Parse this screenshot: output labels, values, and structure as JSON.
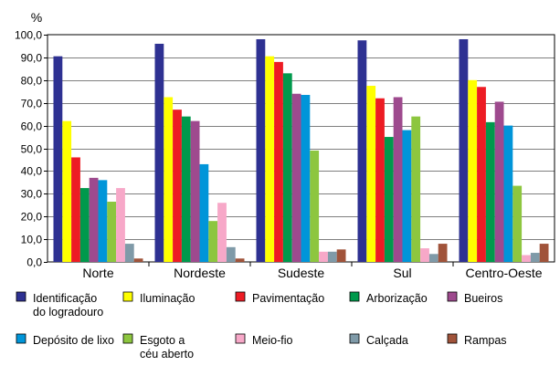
{
  "chart_data": {
    "type": "bar",
    "ylabel": "%",
    "ylim": [
      0,
      100
    ],
    "ytick_step": 10,
    "ytick_labels": [
      "0,0",
      "10,0",
      "20,0",
      "30,0",
      "40,0",
      "50,0",
      "60,0",
      "70,0",
      "80,0",
      "90,0",
      "100,0"
    ],
    "grid": true,
    "categories": [
      "Norte",
      "Nordeste",
      "Sudeste",
      "Sul",
      "Centro-Oeste"
    ],
    "series": [
      {
        "name": "Identificação do logradouro",
        "legend_lines": [
          "Identificação",
          "do logradouro"
        ],
        "color": "#2e3192",
        "values": [
          90.5,
          96.0,
          98.0,
          97.5,
          98.0
        ]
      },
      {
        "name": "Iluminação",
        "legend_lines": [
          "Iluminação"
        ],
        "color": "#ffff00",
        "values": [
          62.0,
          72.5,
          90.5,
          77.5,
          80.0
        ]
      },
      {
        "name": "Pavimentação",
        "legend_lines": [
          "Pavimentação"
        ],
        "color": "#ed1c24",
        "values": [
          46.0,
          67.0,
          88.0,
          72.0,
          77.0
        ]
      },
      {
        "name": "Arborização",
        "legend_lines": [
          "Arborização"
        ],
        "color": "#00994c",
        "values": [
          32.5,
          64.0,
          83.0,
          55.0,
          61.5
        ]
      },
      {
        "name": "Bueiros",
        "legend_lines": [
          "Bueiros"
        ],
        "color": "#9e4a8e",
        "values": [
          37.0,
          62.0,
          74.0,
          72.5,
          70.5
        ]
      },
      {
        "name": "Depósito de lixo",
        "legend_lines": [
          "Depósito de lixo"
        ],
        "color": "#0095d9",
        "values": [
          36.0,
          43.0,
          73.5,
          58.0,
          60.0
        ]
      },
      {
        "name": "Esgoto a céu aberto",
        "legend_lines": [
          "Esgoto a",
          "céu aberto"
        ],
        "color": "#8dc63f",
        "values": [
          26.5,
          18.0,
          49.0,
          64.0,
          33.5
        ]
      },
      {
        "name": "Meio-fio",
        "legend_lines": [
          "Meio-fio"
        ],
        "color": "#f7a8c8",
        "values": [
          32.5,
          26.0,
          4.5,
          6.0,
          3.0
        ]
      },
      {
        "name": "Calçada",
        "legend_lines": [
          "Calçada"
        ],
        "color": "#7f9aa8",
        "values": [
          8.0,
          6.5,
          4.5,
          3.5,
          4.0
        ]
      },
      {
        "name": "Rampas",
        "legend_lines": [
          "Rampas"
        ],
        "color": "#a0533a",
        "values": [
          1.5,
          1.5,
          5.5,
          8.0,
          8.0
        ]
      }
    ]
  }
}
